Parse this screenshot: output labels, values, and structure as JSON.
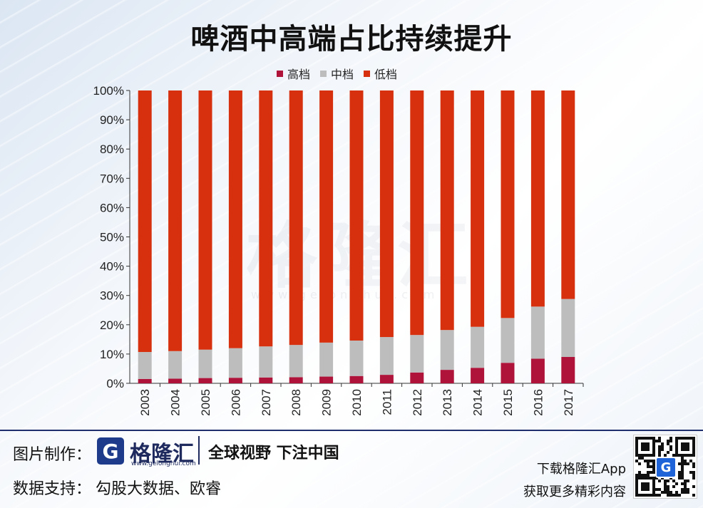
{
  "title": "啤酒中高端占比持续提升",
  "legend": [
    {
      "label": "高档",
      "color": "#b0133a"
    },
    {
      "label": "中档",
      "color": "#bdbdbd"
    },
    {
      "label": "低档",
      "color": "#d6300e"
    }
  ],
  "watermark": {
    "text": "格隆汇",
    "url": "www.gelonghui.com"
  },
  "chart_data": {
    "type": "bar",
    "stacked": true,
    "categories": [
      "2003",
      "2004",
      "2005",
      "2006",
      "2007",
      "2008",
      "2009",
      "2010",
      "2011",
      "2012",
      "2013",
      "2014",
      "2015",
      "2016",
      "2017"
    ],
    "series": [
      {
        "name": "高档",
        "color": "#b0133a",
        "values": [
          1.5,
          1.6,
          1.8,
          1.9,
          2.0,
          2.1,
          2.3,
          2.5,
          2.9,
          3.7,
          4.6,
          5.3,
          7.0,
          8.4,
          9.0
        ]
      },
      {
        "name": "中档",
        "color": "#bdbdbd",
        "values": [
          9.2,
          9.4,
          9.7,
          10.1,
          10.6,
          11.0,
          11.6,
          12.1,
          12.9,
          12.8,
          13.6,
          14.0,
          15.3,
          17.8,
          19.8
        ]
      },
      {
        "name": "低档",
        "color": "#d6300e",
        "values": [
          89.3,
          89.0,
          88.5,
          88.0,
          87.4,
          86.9,
          86.1,
          85.4,
          84.2,
          83.5,
          81.8,
          80.7,
          77.7,
          73.8,
          71.2
        ]
      }
    ],
    "y_ticks": [
      "0%",
      "10%",
      "20%",
      "30%",
      "40%",
      "50%",
      "60%",
      "70%",
      "80%",
      "90%",
      "100%"
    ],
    "ylim": [
      0,
      100
    ],
    "xlabel": "",
    "ylabel": "",
    "legend_position": "top"
  },
  "footer": {
    "made_by_label": "图片制作：",
    "logo_letter": "G",
    "logo_text": "格隆汇",
    "logo_url": "www.gelonghui.com",
    "slogan": "全球视野 下注中国",
    "data_label": "数据支持：",
    "data_sources": "勾股大数据、欧睿",
    "app_line1": "下载格隆汇App",
    "app_line2": "获取更多精彩内容",
    "qr_letter": "G"
  }
}
